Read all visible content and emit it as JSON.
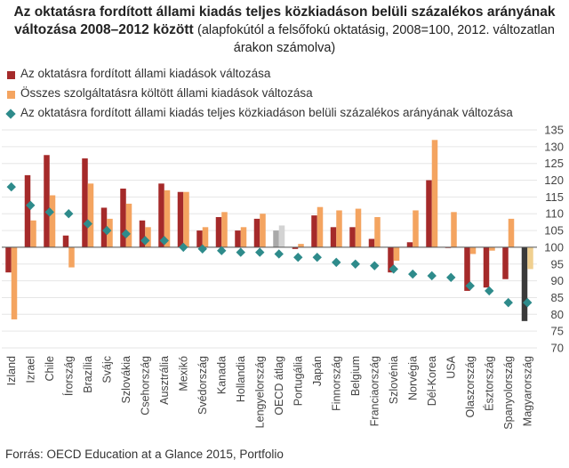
{
  "title": {
    "bold": "Az oktatásra fordított állami kiadás teljes közkiadáson belüli százalékos arányának változása 2008–2012 között",
    "sub": "(alapfokútól a felsőfokú oktatásig, 2008=100, 2012. változatlan árakon számolva)"
  },
  "source": "Forrás: OECD Education at a Glance 2015, Portfolio",
  "colors": {
    "series1": "#a52a2a",
    "series2": "#f4a460",
    "series3": "#2e8b8b",
    "oecd_avg_bar": "#a9a9a9",
    "oecd_avg_bar_light": "#d3d3d3",
    "hungary_bar": "#3a3a3a",
    "hungary_bar_light": "#f0d090",
    "grid": "#e6e6e6",
    "baseline": "#555555"
  },
  "chart_data": {
    "type": "bar",
    "categories": [
      "Izland",
      "Izrael",
      "Chile",
      "Írország",
      "Brazília",
      "Svájc",
      "Szlovákia",
      "Csehország",
      "Ausztrália",
      "Mexikó",
      "Svédország",
      "Kanada",
      "Hollandia",
      "Lengyelország",
      "OECD átlag",
      "Portugália",
      "Japán",
      "Finnország",
      "Belgium",
      "Franciaország",
      "Szlovénia",
      "Norvégia",
      "Dél-Korea",
      "USA",
      "Olaszország",
      "Észtország",
      "Spanyolország",
      "Magyarország"
    ],
    "series": [
      {
        "name": "Az oktatásra fordított állami kiadások változása",
        "kind": "bar",
        "values": [
          92.5,
          121.5,
          127.5,
          103.5,
          126.5,
          111.8,
          117.5,
          108,
          119,
          116.5,
          105,
          109,
          105,
          108.5,
          105,
          99.5,
          109.5,
          106,
          106,
          102.5,
          92.5,
          101.5,
          120,
          99.8,
          87,
          88,
          90.5,
          78
        ]
      },
      {
        "name": "Összes szolgáltatásra költött állami kiadások változása",
        "kind": "bar",
        "values": [
          78.5,
          108,
          115.5,
          94,
          119,
          108.5,
          113,
          106,
          117,
          116.5,
          106,
          110.5,
          106,
          110,
          106.5,
          101,
          112,
          111,
          111.5,
          109,
          96,
          111,
          132,
          110.5,
          98,
          99,
          108.5,
          93.5
        ]
      },
      {
        "name": "Az oktatásra fordított állami kiadás teljes közkiadáson belüli százalékos arányának változása",
        "kind": "marker",
        "values": [
          118,
          112.5,
          110.5,
          110,
          107,
          105,
          104,
          102,
          102,
          100,
          99.5,
          99,
          98.5,
          98.5,
          98,
          97,
          97,
          95.5,
          95,
          94.5,
          93.5,
          92,
          91.5,
          91,
          88.5,
          87,
          83.5,
          83.5
        ]
      }
    ],
    "ylim": [
      70,
      135
    ],
    "yticks": [
      70,
      75,
      80,
      85,
      90,
      95,
      100,
      105,
      110,
      115,
      120,
      125,
      130,
      135
    ],
    "baseline": 100,
    "highlighted_categories": [
      "OECD átlag",
      "Magyarország"
    ],
    "grid": true,
    "legend_position": "top-left",
    "xlabel": "",
    "ylabel": ""
  }
}
